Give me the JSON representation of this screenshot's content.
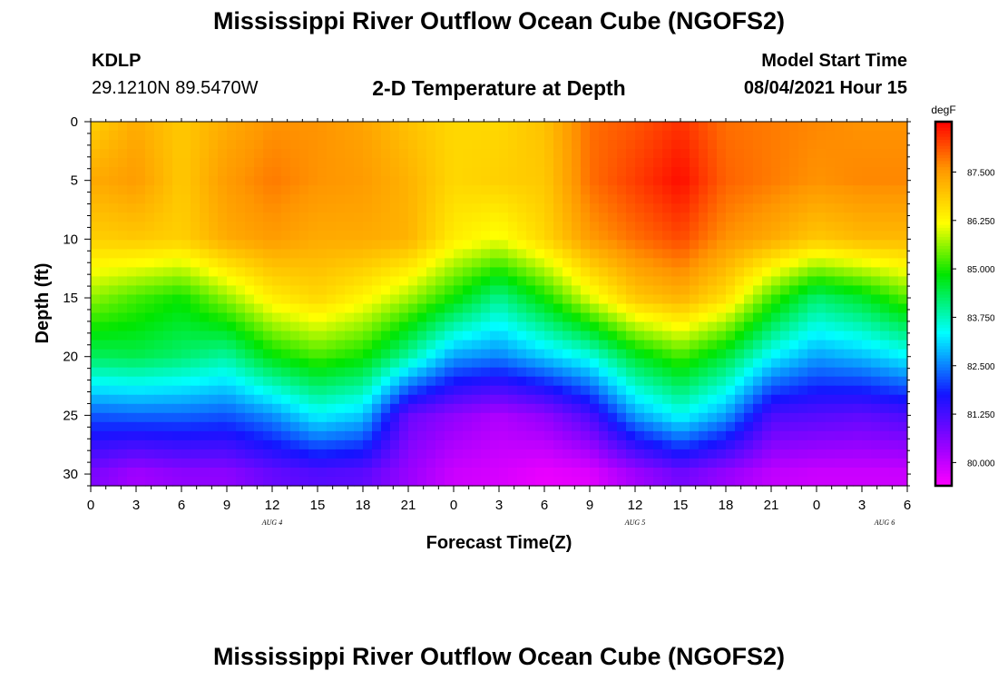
{
  "header": {
    "title": "Mississippi River Outflow Ocean Cube (NGOFS2)",
    "station_id": "KDLP",
    "coordinates": "29.1210N  89.5470W",
    "subtitle": "2-D Temperature at Depth",
    "model_start_label": "Model Start Time",
    "model_start_value": "08/04/2021 Hour 15"
  },
  "footer": {
    "title": "Mississippi River Outflow Ocean Cube (NGOFS2)"
  },
  "chart_data": {
    "type": "heatmap",
    "title": "2-D Temperature at Depth",
    "xlabel": "Forecast Time(Z)",
    "ylabel": "Depth (ft)",
    "x_ticks": [
      "0",
      "3",
      "6",
      "9",
      "12",
      "15",
      "18",
      "21",
      "0",
      "3",
      "6",
      "9",
      "12",
      "15",
      "18",
      "21",
      "0",
      "3",
      "6"
    ],
    "x_date_labels": [
      {
        "label": "AUG 4",
        "at_tick_index": 4
      },
      {
        "label": "AUG 5",
        "at_tick_index": 12
      },
      {
        "label": "AUG 6",
        "at_tick_index": 17.5
      }
    ],
    "y_ticks": [
      0,
      5,
      10,
      15,
      20,
      25,
      30
    ],
    "ylim": [
      0,
      31
    ],
    "y_inverted": true,
    "forecast_hours_range": [
      0,
      54
    ],
    "colorbar": {
      "unit": "degF",
      "tick_labels": [
        "87.500",
        "86.250",
        "85.000",
        "83.750",
        "82.500",
        "81.250",
        "80.000"
      ],
      "tick_values": [
        87.5,
        86.25,
        85.0,
        83.75,
        82.5,
        81.25,
        80.0
      ],
      "range": [
        79.4,
        88.8
      ]
    },
    "depth_levels_ft": [
      0,
      5,
      10,
      15,
      20,
      25,
      30
    ],
    "hours_sampled": [
      0,
      3,
      6,
      9,
      12,
      15,
      18,
      21,
      24,
      27,
      30,
      33,
      36,
      39,
      42,
      45,
      48,
      51,
      54
    ],
    "temperature_degF": [
      [
        86.8,
        87.3,
        86.9,
        87.3,
        87.6,
        87.6,
        87.4,
        87.0,
        86.7,
        86.7,
        87.0,
        87.9,
        88.1,
        88.4,
        87.9,
        87.8,
        87.7,
        87.6,
        87.6
      ],
      [
        87.3,
        87.5,
        86.9,
        87.5,
        87.8,
        87.6,
        87.5,
        87.2,
        86.7,
        86.8,
        86.9,
        87.9,
        88.3,
        88.7,
        88.0,
        87.8,
        87.6,
        87.7,
        87.7
      ],
      [
        86.8,
        86.9,
        86.8,
        87.3,
        87.5,
        87.3,
        87.3,
        87.2,
        86.4,
        86.1,
        86.7,
        87.5,
        87.9,
        88.2,
        87.6,
        87.3,
        86.9,
        87.1,
        87.1
      ],
      [
        85.6,
        85.2,
        84.9,
        85.6,
        86.4,
        86.7,
        86.3,
        85.7,
        84.9,
        84.0,
        84.9,
        86.0,
        86.9,
        87.2,
        86.6,
        85.2,
        84.2,
        84.6,
        85.3
      ],
      [
        84.3,
        84.4,
        84.2,
        83.9,
        84.8,
        85.2,
        84.9,
        83.9,
        82.7,
        82.5,
        83.0,
        83.5,
        84.6,
        85.2,
        84.5,
        83.3,
        82.7,
        82.9,
        83.3
      ],
      [
        82.2,
        82.3,
        82.3,
        82.2,
        82.6,
        83.3,
        83.0,
        80.9,
        80.5,
        80.2,
        80.5,
        81.2,
        82.7,
        83.4,
        82.7,
        81.2,
        81.1,
        81.0,
        81.2
      ],
      [
        80.7,
        80.3,
        80.5,
        80.5,
        80.9,
        81.1,
        81.0,
        80.4,
        79.9,
        79.8,
        79.6,
        79.7,
        80.3,
        80.8,
        80.4,
        80.0,
        79.9,
        79.9,
        79.9
      ]
    ]
  }
}
